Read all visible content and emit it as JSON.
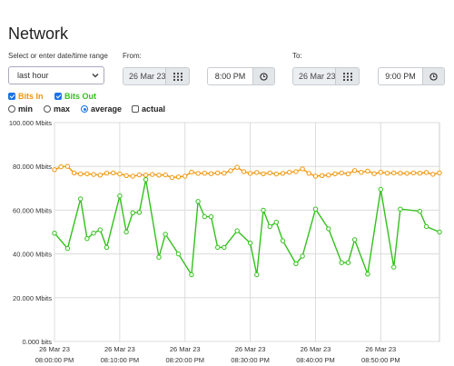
{
  "page": {
    "title": "Network"
  },
  "range": {
    "label": "Select or enter date/time range",
    "selected": "last hour"
  },
  "from": {
    "label": "From:",
    "date": "26 Mar 23",
    "time": "8:00 PM"
  },
  "to": {
    "label": "To:",
    "date": "26 Mar 23",
    "time": "9:00 PM"
  },
  "series_toggles": [
    {
      "label": "Bits In",
      "checked": true,
      "color": "#f0960a"
    },
    {
      "label": "Bits Out",
      "checked": true,
      "color": "#33c11c"
    }
  ],
  "options": {
    "min": "min",
    "max": "max",
    "average": "average",
    "actual": "actual",
    "selected_mode": "average",
    "actual_checked": false
  },
  "icons": {
    "calendar": "calendar-icon",
    "clock": "clock-icon",
    "dropdown": "chevron-down-icon"
  },
  "chart_data": {
    "type": "line",
    "y_tick_labels": [
      "100.000 Mbits",
      "80.000 Mbits",
      "60.000 Mbits",
      "40.000 Mbits",
      "20.000 Mbits",
      "0.000 bits"
    ],
    "x_tick_labels": [
      [
        "26 Mar 23",
        "08:00:00 PM"
      ],
      [
        "26 Mar 23",
        "08:10:00 PM"
      ],
      [
        "26 Mar 23",
        "08:20:00 PM"
      ],
      [
        "26 Mar 23",
        "08:30:00 PM"
      ],
      [
        "26 Mar 23",
        "08:40:00 PM"
      ],
      [
        "26 Mar 23",
        "08:50:00 PM"
      ]
    ],
    "ylim": [
      0,
      100
    ],
    "y_unit": "Mbits",
    "x_minutes_range": [
      0,
      59
    ],
    "grid": true,
    "series": [
      {
        "name": "Bits In",
        "color": "#f0960a",
        "x": [
          0,
          1,
          2,
          3,
          4,
          5,
          6,
          7,
          8,
          9,
          10,
          11,
          12,
          13,
          14,
          15,
          16,
          17,
          18,
          19,
          20,
          21,
          22,
          23,
          24,
          25,
          26,
          27,
          28,
          29,
          30,
          31,
          32,
          33,
          34,
          35,
          36,
          37,
          38,
          39,
          40,
          41,
          42,
          43,
          44,
          45,
          46,
          47,
          48,
          49,
          50,
          51,
          52,
          53,
          54,
          55,
          56,
          57,
          58,
          59
        ],
        "values": [
          78.5,
          79.8,
          80.0,
          77.0,
          76.5,
          76.6,
          76.3,
          76.0,
          76.9,
          77.0,
          76.5,
          75.8,
          75.5,
          76.1,
          76.0,
          76.3,
          76.0,
          76.1,
          74.9,
          75.2,
          75.5,
          77.4,
          76.8,
          76.9,
          76.7,
          77.0,
          76.9,
          78.0,
          79.6,
          77.6,
          76.8,
          77.2,
          76.6,
          77.0,
          76.5,
          76.8,
          77.3,
          77.6,
          78.9,
          76.8,
          75.5,
          75.8,
          76.0,
          76.6,
          77.0,
          76.6,
          78.1,
          77.3,
          77.9,
          76.7,
          77.3,
          76.9,
          77.0,
          76.9,
          76.8,
          77.0,
          76.9,
          77.2,
          76.4,
          77.0
        ]
      },
      {
        "name": "Bits Out",
        "color": "#33c11c",
        "x": [
          0,
          2,
          4,
          5,
          6,
          7,
          8,
          10,
          11,
          12,
          13,
          14,
          16,
          17,
          19,
          21,
          22,
          23,
          24,
          25,
          26,
          28,
          30,
          31,
          32,
          33,
          34,
          35,
          37,
          38,
          40,
          42,
          44,
          45,
          46,
          48,
          50,
          52,
          53,
          56,
          57,
          59
        ],
        "values": [
          49.5,
          42.5,
          65.2,
          47.0,
          49.5,
          51.0,
          43.0,
          66.5,
          50.0,
          58.8,
          59.0,
          74.0,
          38.5,
          49.0,
          40.0,
          30.5,
          64.0,
          57.0,
          57.0,
          43.0,
          43.0,
          50.6,
          45.0,
          30.5,
          60.0,
          52.5,
          54.5,
          46.0,
          35.5,
          39.0,
          60.5,
          51.5,
          36.0,
          36.0,
          46.5,
          30.8,
          69.5,
          34.0,
          60.5,
          59.5,
          52.5,
          50.0
        ]
      }
    ]
  }
}
